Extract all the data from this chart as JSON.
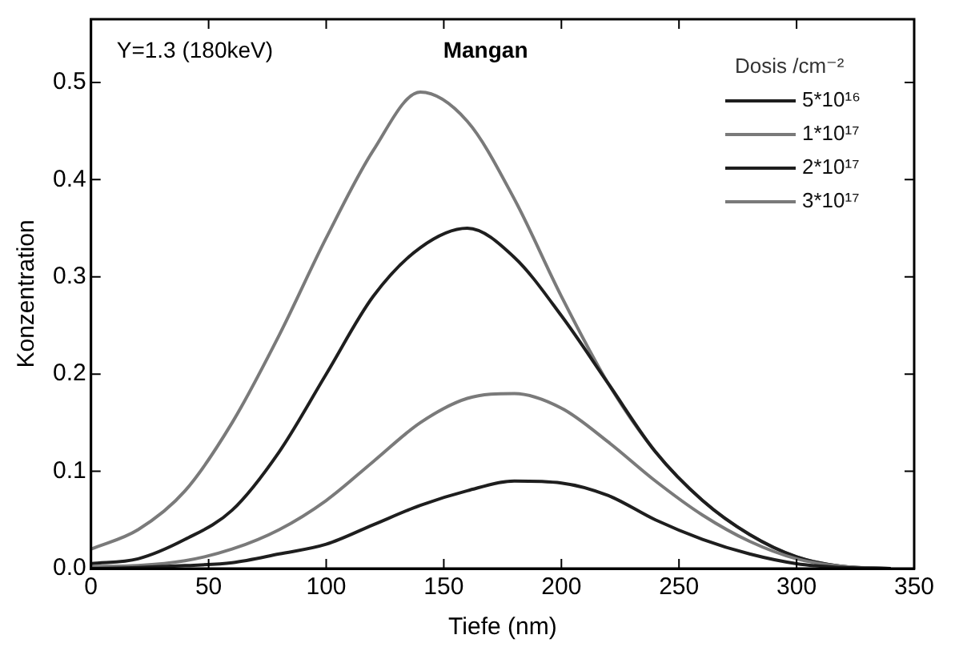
{
  "chart_data": {
    "type": "line",
    "xlabel": "Tiefe (nm)",
    "ylabel": "Konzentration",
    "legend_title": "Dosis /cm⁻²",
    "legend": "top right",
    "grid": false,
    "marker": "none",
    "line_style": "solid",
    "annotations": [
      "Y=1.3 (180keV)",
      "Mangan"
    ],
    "xlim": [
      0,
      350
    ],
    "xticks": [
      0,
      50,
      100,
      150,
      200,
      250,
      300,
      350
    ],
    "ylim": [
      0,
      0.565
    ],
    "yticks": [
      {
        "value": 0,
        "label": "0.0"
      },
      {
        "value": 0.1,
        "label": "0.1"
      },
      {
        "value": 0.2,
        "label": "0.2"
      },
      {
        "value": 0.3,
        "label": "0.3"
      },
      {
        "value": 0.4,
        "label": "0.4"
      },
      {
        "value": 0.5,
        "label": "0.5"
      }
    ],
    "x": [
      0,
      20,
      40,
      60,
      80,
      100,
      120,
      140,
      160,
      180,
      200,
      220,
      240,
      260,
      280,
      300,
      320,
      340
    ],
    "series": [
      {
        "name": "5*10¹⁶",
        "color": "#1e1e1e",
        "values": [
          0,
          0.001,
          0.003,
          0.006,
          0.015,
          0.025,
          0.045,
          0.065,
          0.08,
          0.09,
          0.088,
          0.075,
          0.05,
          0.03,
          0.015,
          0.005,
          0.001,
          0
        ]
      },
      {
        "name": "1*10¹⁷",
        "color": "#7a7a7a",
        "values": [
          0.002,
          0.003,
          0.008,
          0.02,
          0.04,
          0.07,
          0.11,
          0.15,
          0.175,
          0.18,
          0.165,
          0.13,
          0.09,
          0.055,
          0.028,
          0.01,
          0.002,
          0
        ]
      },
      {
        "name": "2*10¹⁷",
        "color": "#1e1e1e",
        "values": [
          0.005,
          0.01,
          0.03,
          0.06,
          0.12,
          0.2,
          0.28,
          0.33,
          0.35,
          0.32,
          0.26,
          0.19,
          0.12,
          0.07,
          0.035,
          0.012,
          0.002,
          0
        ]
      },
      {
        "name": "3*10¹⁷",
        "color": "#7a7a7a",
        "values": [
          0.02,
          0.04,
          0.08,
          0.15,
          0.24,
          0.34,
          0.43,
          0.49,
          0.46,
          0.38,
          0.28,
          0.19,
          0.12,
          0.07,
          0.035,
          0.012,
          0.002,
          0
        ]
      }
    ]
  }
}
